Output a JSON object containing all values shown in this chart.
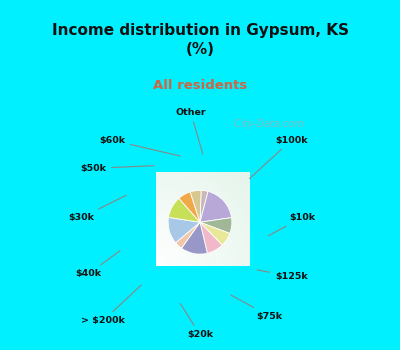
{
  "title": "Income distribution in Gypsum, KS\n(%)",
  "subtitle": "All residents",
  "title_color": "#111111",
  "subtitle_color": "#cc6644",
  "bg_cyan": "#00f0ff",
  "bg_chart_color": "#c8ead8",
  "labels": [
    "Other",
    "$100k",
    "$10k",
    "$125k",
    "$75k",
    "$20k",
    "> $200k",
    "$40k",
    "$30k",
    "$50k",
    "$60k"
  ],
  "sizes": [
    3.5,
    18.5,
    8.0,
    7.0,
    8.5,
    13.5,
    4.0,
    13.5,
    11.0,
    6.5,
    5.5
  ],
  "colors": [
    "#c8b8b8",
    "#b8a8d8",
    "#a0b898",
    "#e8e898",
    "#f0b8c8",
    "#9898c8",
    "#f0c8a8",
    "#a8c8e8",
    "#c8e058",
    "#f0a848",
    "#d8c890"
  ],
  "watermark": "  City-Data.com",
  "title_fontsize": 11,
  "subtitle_fontsize": 9.5
}
